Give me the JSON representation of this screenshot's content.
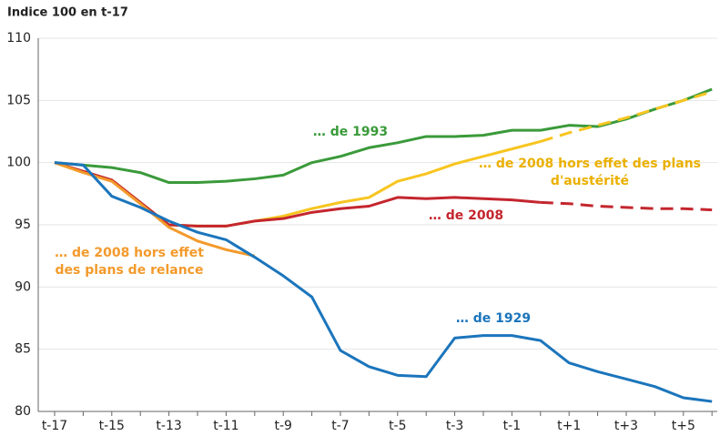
{
  "chart_data": {
    "type": "line",
    "title": "Indice 100 en t-17",
    "categories": [
      "t-17",
      null,
      "t-15",
      null,
      "t-13",
      null,
      "t-11",
      null,
      "t-9",
      null,
      "t-7",
      null,
      "t-5",
      null,
      "t-3",
      null,
      "t-1",
      null,
      "t+1",
      null,
      "t+3",
      null,
      "t+5",
      null
    ],
    "ylim": [
      80,
      110
    ],
    "yticks": [
      80,
      85,
      90,
      95,
      100,
      105,
      110
    ],
    "grid": true,
    "series": [
      {
        "label": [
          "… de 1993"
        ],
        "color": "#3a9a3a",
        "values": [
          100,
          99.8,
          99.6,
          99.2,
          98.4,
          98.4,
          98.5,
          98.7,
          99.0,
          100.0,
          100.5,
          101.2,
          101.6,
          102.1,
          102.1,
          102.2,
          102.6,
          102.6,
          103.0,
          102.9,
          103.5,
          104.3,
          105.0,
          105.9
        ]
      },
      {
        "label": [
          "… de 2008 hors effet des plans",
          "d'austérité"
        ],
        "color": "#f7c520",
        "label_color": "#ebb000",
        "dash_from": 17,
        "values": [
          100,
          99.2,
          98.6,
          96.8,
          95.0,
          94.9,
          94.9,
          95.3,
          95.7,
          96.3,
          96.8,
          97.2,
          98.5,
          99.1,
          99.9,
          100.5,
          101.1,
          101.7,
          102.4,
          103.0,
          103.6,
          104.3,
          105.0,
          105.7
        ]
      },
      {
        "label": [
          "… de 2008"
        ],
        "color": "#c4262e",
        "dash_from": 17,
        "values": [
          100,
          99.3,
          98.6,
          96.8,
          95.0,
          94.9,
          94.9,
          95.3,
          95.5,
          96.0,
          96.3,
          96.5,
          97.2,
          97.1,
          97.2,
          97.1,
          97.0,
          96.8,
          96.7,
          96.5,
          96.4,
          96.3,
          96.3,
          96.2
        ]
      },
      {
        "label": [
          "… de 2008 hors effet",
          "des plans de relance"
        ],
        "color": "#f39a2b",
        "values": [
          100,
          99.2,
          98.5,
          96.7,
          94.8,
          93.7,
          93.0,
          92.5,
          null,
          null,
          null,
          null,
          null,
          null,
          null,
          null,
          null,
          null,
          null,
          null,
          null,
          null,
          null,
          null
        ]
      },
      {
        "label": [
          "… de 1929"
        ],
        "color": "#1b75bc",
        "values": [
          100,
          99.8,
          97.3,
          96.4,
          95.3,
          94.4,
          93.8,
          92.4,
          90.9,
          89.2,
          84.9,
          83.6,
          82.9,
          82.8,
          85.9,
          86.1,
          86.1,
          85.7,
          83.9,
          83.2,
          82.6,
          82.0,
          81.1,
          80.8
        ]
      }
    ]
  }
}
